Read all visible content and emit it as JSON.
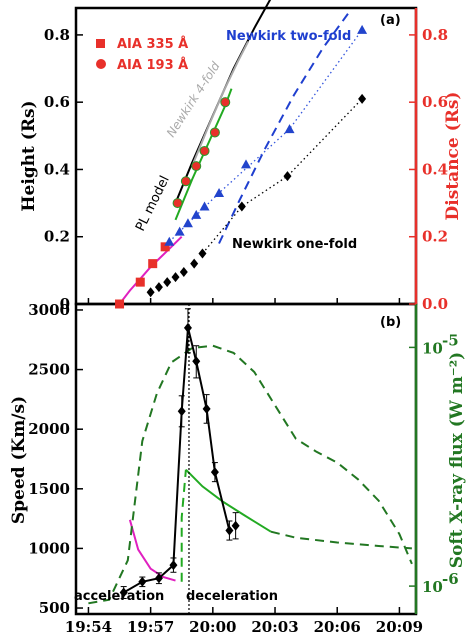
{
  "chart_data": [
    {
      "type": "scatter",
      "panel_label": "(a)",
      "ylabel_left": "Height (Rs)",
      "ylabel_right": "Distance (Rs)",
      "y_ticks": [
        "0",
        "0.2",
        "0.4",
        "0.6",
        "0.8"
      ],
      "y_ticks_right": [
        "0.0",
        "0.2",
        "0.4",
        "0.6",
        "0.8"
      ],
      "ylim": [
        0,
        0.88
      ],
      "xlim": [
        -0.6,
        15.8
      ],
      "legend": [
        {
          "label": "AIA 335 Å",
          "marker": "square",
          "color": "#e8302a"
        },
        {
          "label": "AIA 193 Å",
          "marker": "circle",
          "color": "#e8302a"
        }
      ],
      "annotations": {
        "pl_model": "PL model",
        "newkirk_four": "Newkirk 4-fold",
        "newkirk_two": "Newkirk two-fold",
        "newkirk_one": "Newkirk one-fold"
      },
      "series": [
        {
          "name": "AIA 335 Å",
          "marker": "square",
          "color": "#e8302a",
          "x": [
            1.5,
            2.5,
            3.1,
            3.7
          ],
          "y": [
            0.0,
            0.065,
            0.12,
            0.17
          ]
        },
        {
          "name": "AIA 193 Å",
          "marker": "circle",
          "color": "#e8302a",
          "x": [
            4.3,
            4.7,
            5.2,
            5.6,
            6.1,
            6.6
          ],
          "y": [
            0.3,
            0.365,
            0.41,
            0.455,
            0.51,
            0.6
          ]
        },
        {
          "name": "blue triangles",
          "marker": "triangle",
          "color": "#2244cc",
          "x": [
            3.9,
            4.4,
            4.8,
            5.2,
            5.6,
            6.3,
            7.6,
            9.7,
            13.2
          ],
          "y": [
            0.185,
            0.215,
            0.24,
            0.265,
            0.29,
            0.33,
            0.415,
            0.52,
            0.815
          ]
        },
        {
          "name": "black diamonds",
          "marker": "diamond",
          "color": "#000000",
          "x": [
            3.0,
            3.4,
            3.8,
            4.2,
            4.6,
            5.1,
            5.5,
            7.4,
            9.6,
            13.2
          ],
          "y": [
            0.035,
            0.05,
            0.065,
            0.08,
            0.095,
            0.12,
            0.15,
            0.29,
            0.38,
            0.61
          ]
        }
      ],
      "lines": [
        {
          "name": "PL model",
          "color": "#000000",
          "style": "solid",
          "x": [
            4.2,
            5.0,
            6.0,
            7.0,
            8.0,
            8.9
          ],
          "y": [
            0.3,
            0.42,
            0.56,
            0.7,
            0.82,
            0.92
          ]
        },
        {
          "name": "Newkirk 4-fold",
          "color": "#aaaaaa",
          "style": "solid",
          "x": [
            5.0,
            5.8,
            6.5,
            7.2,
            7.7
          ],
          "y": [
            0.41,
            0.53,
            0.63,
            0.72,
            0.78
          ]
        },
        {
          "name": "Newkirk two-fold",
          "color": "#1f3fcf",
          "style": "dashed",
          "x": [
            6.3,
            7.3,
            8.5,
            9.9,
            11.3,
            12.6
          ],
          "y": [
            0.18,
            0.31,
            0.46,
            0.62,
            0.76,
            0.87
          ]
        },
        {
          "name": "blue fit",
          "color": "#3355dd",
          "style": "dotted",
          "x": [
            3.9,
            6.3,
            9.7,
            13.2
          ],
          "y": [
            0.185,
            0.33,
            0.52,
            0.815
          ]
        },
        {
          "name": "black fit",
          "color": "#000000",
          "style": "dotted",
          "x": [
            5.5,
            7.4,
            9.6,
            13.2
          ],
          "y": [
            0.15,
            0.29,
            0.38,
            0.61
          ]
        },
        {
          "name": "magenta fit",
          "color": "#e020c0",
          "style": "solid",
          "x": [
            1.5,
            2.0,
            2.5,
            3.0,
            3.5,
            4.0,
            4.5
          ],
          "y": [
            0.0,
            0.04,
            0.075,
            0.11,
            0.14,
            0.17,
            0.2
          ]
        },
        {
          "name": "green fit",
          "color": "#22aa22",
          "style": "solid",
          "x": [
            4.2,
            5.0,
            5.8,
            6.6,
            6.9
          ],
          "y": [
            0.25,
            0.37,
            0.48,
            0.59,
            0.64
          ]
        }
      ]
    },
    {
      "type": "line",
      "panel_label": "(b)",
      "ylabel_left": "Speed (Km/s)",
      "ylabel_right": "Soft X-ray flux (W m⁻²)",
      "x_ticks": [
        "19:54",
        "19:57",
        "20:00",
        "20:03",
        "20:06",
        "20:09"
      ],
      "y_ticks": [
        "500",
        "1000",
        "1500",
        "2000",
        "2500",
        "3000"
      ],
      "y_ticks_right": [
        "10",
        "10"
      ],
      "y_ticks_right_exponents": [
        "-6",
        "-5"
      ],
      "ylim": [
        450,
        3050
      ],
      "xlim": [
        -0.6,
        15.8
      ],
      "annotations": {
        "acceleration": "acceleration",
        "deceleration": "deceleration"
      },
      "series": [
        {
          "name": "speed",
          "marker": "diamond",
          "color": "#000000",
          "x": [
            1.7,
            2.6,
            3.4,
            4.1,
            4.5,
            4.8,
            5.2,
            5.7,
            6.1,
            6.8
          ],
          "y": [
            630,
            720,
            750,
            860,
            2150,
            2850,
            2570,
            2170,
            1640,
            1150
          ]
        },
        {
          "name": "speed late",
          "marker": "diamond",
          "color": "#000000",
          "x": [
            7.1
          ],
          "y": [
            1190
          ]
        }
      ],
      "error_bars": [
        {
          "x": 1.7,
          "lo": 580,
          "hi": 680
        },
        {
          "x": 2.6,
          "lo": 680,
          "hi": 760
        },
        {
          "x": 3.4,
          "lo": 705,
          "hi": 795
        },
        {
          "x": 4.1,
          "lo": 800,
          "hi": 920
        },
        {
          "x": 4.5,
          "lo": 2020,
          "hi": 2280
        },
        {
          "x": 4.8,
          "lo": 2640,
          "hi": 3010
        },
        {
          "x": 5.2,
          "lo": 2430,
          "hi": 2700
        },
        {
          "x": 5.7,
          "lo": 2050,
          "hi": 2290
        },
        {
          "x": 6.1,
          "lo": 1560,
          "hi": 1720
        },
        {
          "x": 6.8,
          "lo": 1070,
          "hi": 1230
        },
        {
          "x": 7.1,
          "lo": 1080,
          "hi": 1300
        }
      ],
      "lines": [
        {
          "name": "magenta",
          "color": "#e020c0",
          "style": "solid",
          "x": [
            2.0,
            2.4,
            3.0,
            3.6,
            4.2
          ],
          "y": [
            1240,
            990,
            830,
            760,
            730
          ]
        },
        {
          "name": "green solid",
          "color": "#22aa22",
          "style": "solid",
          "x": [
            4.7,
            5.5,
            6.5,
            7.5,
            8.8
          ],
          "y": [
            1660,
            1520,
            1390,
            1280,
            1140
          ]
        },
        {
          "name": "flux dashed",
          "color": "#227722",
          "style": "dashed",
          "x": [
            0.0,
            1.0,
            1.9,
            2.6,
            3.3,
            4.0,
            5.0,
            6.0,
            7.0,
            8.0,
            9.0,
            10.0,
            11.0,
            12.0,
            13.0,
            14.0,
            15.0,
            15.6
          ],
          "y": [
            540,
            570,
            900,
            1900,
            2300,
            2560,
            2680,
            2700,
            2640,
            2480,
            2200,
            1920,
            1810,
            1720,
            1580,
            1400,
            1120,
            870
          ]
        },
        {
          "name": "flux dashed tail",
          "color": "#227722",
          "style": "dashed",
          "x": [
            8.8,
            10.0,
            12.0,
            14.0,
            15.6
          ],
          "y": [
            1140,
            1090,
            1050,
            1020,
            1000
          ]
        },
        {
          "name": "green jump",
          "color": "#22aa22",
          "style": "dashed",
          "x": [
            4.5,
            4.5,
            4.7
          ],
          "y": [
            720,
            1260,
            1660
          ]
        }
      ],
      "vline_x": 4.85
    }
  ]
}
